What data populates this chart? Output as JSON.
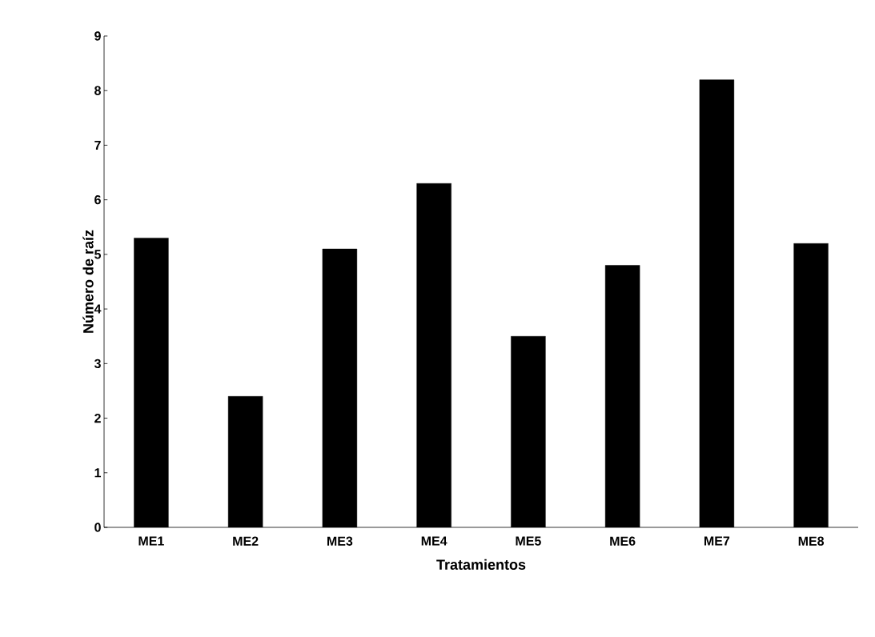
{
  "chart_data": {
    "type": "bar",
    "xlabel": "Tratamientos",
    "ylabel": "Número de raíz",
    "categories": [
      "ME1",
      "ME2",
      "ME3",
      "ME4",
      "ME5",
      "ME6",
      "ME7",
      "ME8"
    ],
    "values": [
      5.3,
      2.4,
      5.1,
      6.3,
      3.5,
      4.8,
      8.2,
      5.2
    ],
    "color": "#000000",
    "ylim": [
      0,
      9
    ],
    "yticks": [
      0,
      1,
      2,
      3,
      4,
      5,
      6,
      7,
      8,
      9
    ],
    "grid": false
  }
}
